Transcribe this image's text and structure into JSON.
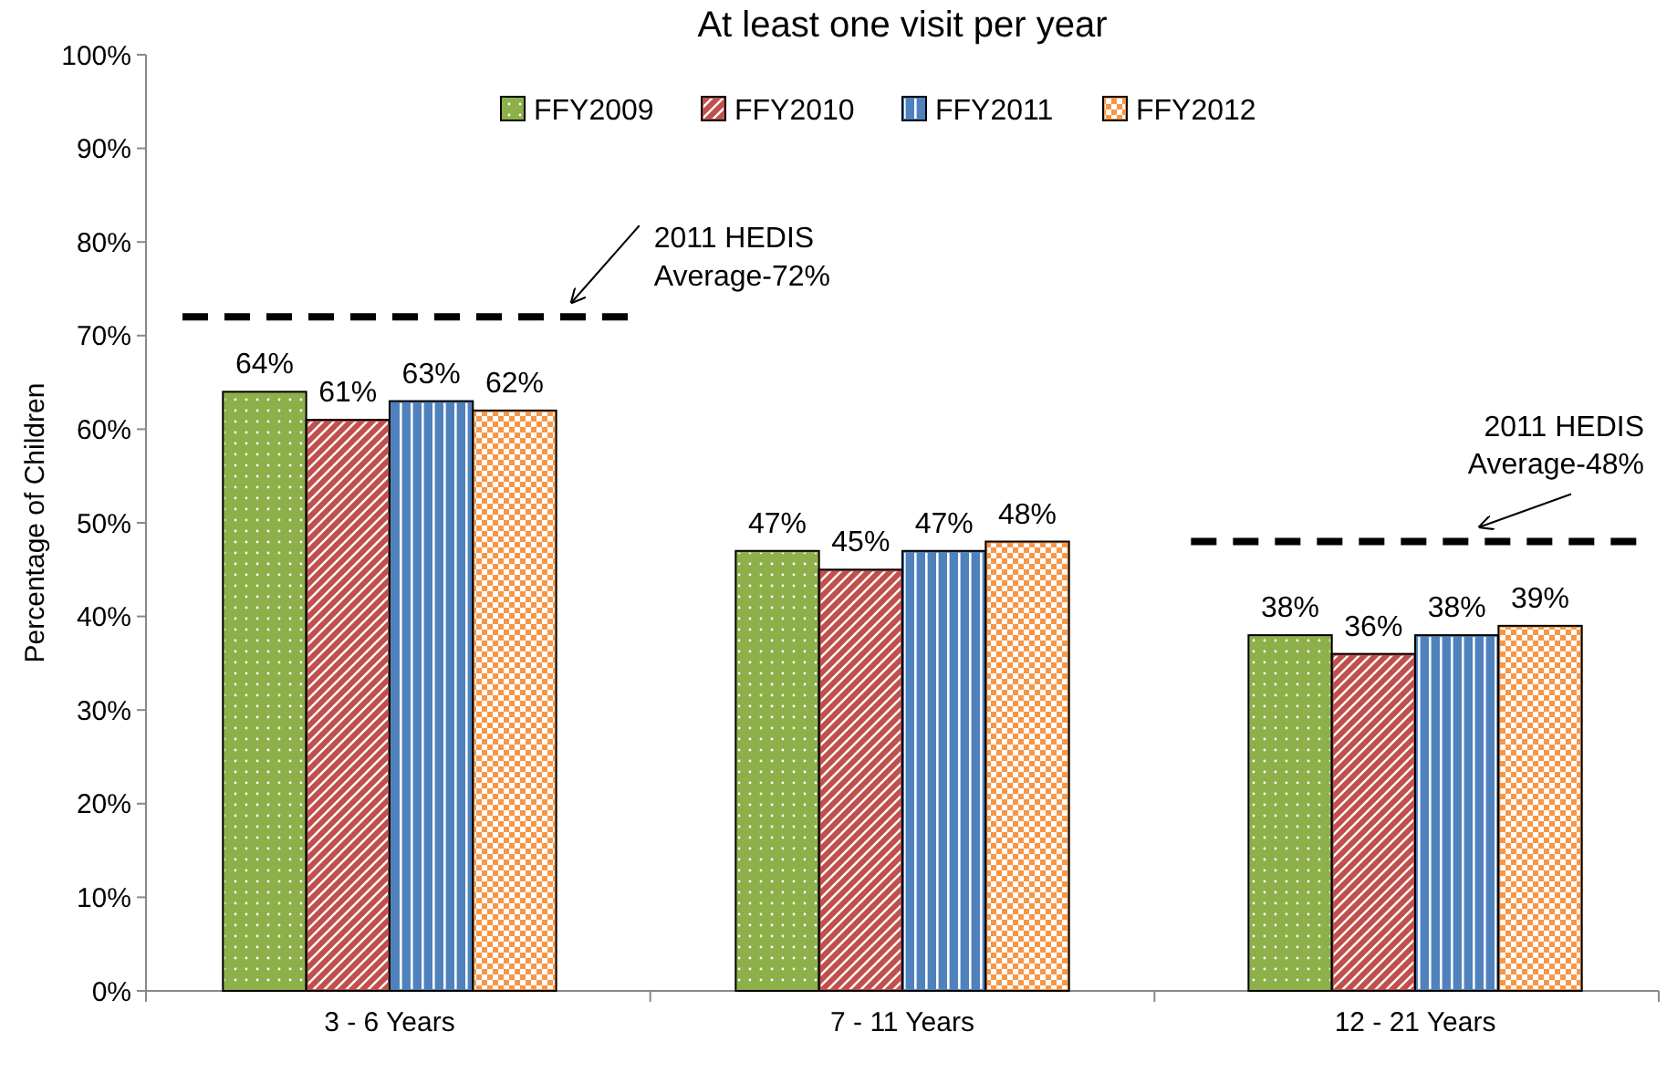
{
  "chart_data": {
    "type": "bar",
    "title": "At least one visit per year",
    "ylabel": "Percentage of Children",
    "categories": [
      "3 - 6 Years",
      "7 - 11 Years",
      "12 - 21 Years"
    ],
    "series": [
      {
        "name": "FFY2009",
        "color": "#8db04a",
        "values": [
          64,
          47,
          38
        ]
      },
      {
        "name": "FFY2010",
        "color": "#c0504d",
        "values": [
          61,
          45,
          36
        ]
      },
      {
        "name": "FFY2011",
        "color": "#4f81bd",
        "values": [
          63,
          47,
          38
        ]
      },
      {
        "name": "FFY2012",
        "color": "#f79646",
        "values": [
          62,
          48,
          39
        ]
      }
    ],
    "ylim": [
      0,
      100
    ],
    "yticks": [
      {
        "value": 0,
        "label": "0%"
      },
      {
        "value": 10,
        "label": "10%"
      },
      {
        "value": 20,
        "label": "20%"
      },
      {
        "value": 30,
        "label": "30%"
      },
      {
        "value": 40,
        "label": "40%"
      },
      {
        "value": 50,
        "label": "50%"
      },
      {
        "value": 60,
        "label": "60%"
      },
      {
        "value": 70,
        "label": "70%"
      },
      {
        "value": 80,
        "label": "80%"
      },
      {
        "value": 90,
        "label": "90%"
      },
      {
        "value": 100,
        "label": "100%"
      }
    ],
    "value_labels": [
      [
        "64%",
        "47%",
        "38%"
      ],
      [
        "61%",
        "45%",
        "36%"
      ],
      [
        "63%",
        "47%",
        "38%"
      ],
      [
        "62%",
        "48%",
        "39%"
      ]
    ],
    "ref_lines": [
      {
        "axis": "y",
        "value": 72,
        "label": "2011 HEDIS Average-72%",
        "color": "#000000",
        "line_style": "dashed"
      },
      {
        "axis": "y",
        "value": 48,
        "label": "2011 HEDIS Average-48%",
        "color": "#000000",
        "line_style": "dashed"
      }
    ],
    "legend": "top",
    "grid": false
  }
}
